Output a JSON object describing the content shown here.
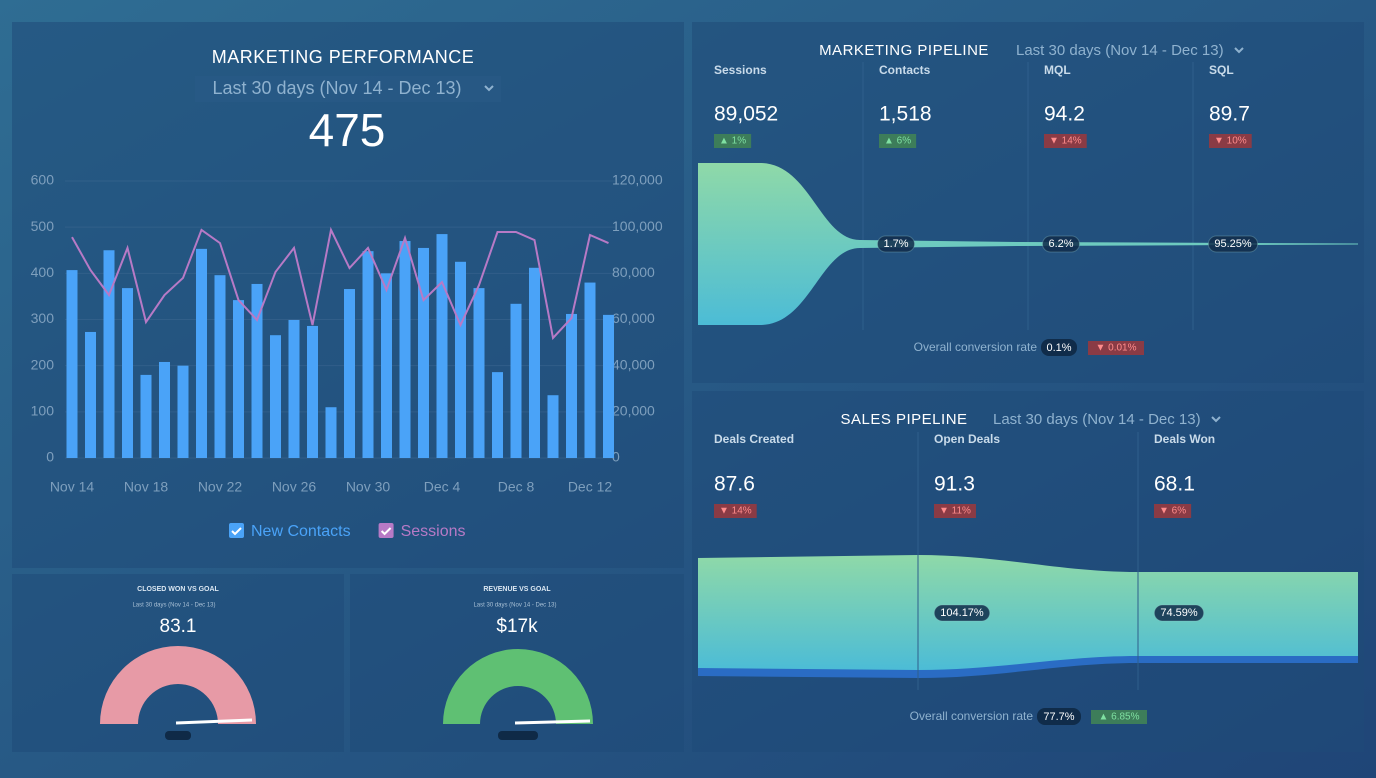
{
  "chart_data": {
    "type": "bar",
    "title": "MARKETING PERFORMANCE",
    "subtitle": "Last 30 days (Nov 14 - Dec 13)",
    "kpi": "475",
    "categories": [
      "Nov 14",
      null,
      null,
      null,
      "Nov 18",
      null,
      null,
      null,
      "Nov 22",
      null,
      null,
      null,
      "Nov 26",
      null,
      null,
      null,
      "Nov 30",
      null,
      null,
      null,
      "Dec 4",
      null,
      null,
      null,
      "Dec 8",
      null,
      null,
      null,
      "Dec 12",
      null
    ],
    "series": [
      {
        "name": "New Contacts",
        "color": "#4aa3f8",
        "values": [
          407,
          273,
          450,
          368,
          180,
          208,
          200,
          453,
          396,
          342,
          377,
          266,
          299,
          286,
          110,
          366,
          448,
          400,
          470,
          455,
          485,
          425,
          368,
          186,
          334,
          412,
          136,
          312,
          380,
          310
        ]
      },
      {
        "name": "Sessions",
        "color": "#b77ac6",
        "type": "line",
        "axis": "y2",
        "values": [
          95700,
          81400,
          70600,
          91000,
          58900,
          70600,
          78000,
          98800,
          93100,
          68400,
          59800,
          80600,
          91000,
          57600,
          98800,
          82300,
          91000,
          72800,
          95300,
          68400,
          76200,
          57600,
          74900,
          97900,
          97900,
          94400,
          52000,
          60600,
          96600,
          93100
        ]
      }
    ],
    "ylim": [
      0,
      600
    ],
    "yticks": [
      0,
      100,
      200,
      300,
      400,
      500,
      600
    ],
    "y2lim": [
      0,
      120000
    ],
    "y2ticks": [
      0,
      {
        "value": 20000,
        "label": "20,000"
      },
      {
        "value": 40000,
        "label": "40,000"
      },
      {
        "value": 60000,
        "label": "60,000"
      },
      {
        "value": 80000,
        "label": "80,000"
      },
      {
        "value": 100000,
        "label": "100,000"
      },
      {
        "value": 120000,
        "label": "120,000"
      }
    ],
    "grid": true
  },
  "closed_won": {
    "title": "CLOSED WON VS GOAL",
    "subtitle": "Last 30 days (Nov 14 - Dec 13)",
    "value": "83.1"
  },
  "revenue": {
    "title": "REVENUE VS GOAL",
    "subtitle": "Last 30 days (Nov 14 - Dec 13)",
    "value": "$17k"
  },
  "marketing_pipeline": {
    "title": "MARKETING PIPELINE",
    "subtitle": "Last 30 days (Nov 14 - Dec 13)",
    "stages": [
      {
        "label": "Sessions",
        "value": "89,052",
        "change": "▲ 1%"
      },
      {
        "label": "Contacts",
        "value": "1,518",
        "change": "▲ 6%"
      },
      {
        "label": "MQL",
        "value": "94.2",
        "change": "▼ 14%"
      },
      {
        "label": "SQL",
        "value": "89.7",
        "change": "▼ 10%"
      }
    ],
    "conversions": [
      "1.7%",
      "6.2%",
      "95.25%"
    ],
    "overall_label": "Overall conversion rate",
    "overall_value": "0.1%",
    "overall_change": "▼ 0.01%"
  },
  "sales_pipeline": {
    "title": "SALES PIPELINE",
    "subtitle": "Last 30 days (Nov 14 - Dec 13)",
    "stages": [
      {
        "label": "Deals Created",
        "value": "87.6",
        "change": "▼ 14%"
      },
      {
        "label": "Open Deals",
        "value": "91.3",
        "change": "▼ 11%"
      },
      {
        "label": "Deals Won",
        "value": "68.1",
        "change": "▼ 6%"
      }
    ],
    "conversions": [
      "104.17%",
      "74.59%"
    ],
    "overall_label": "Overall conversion rate",
    "overall_value": "77.7%",
    "overall_change": "▲ 6.85%"
  }
}
